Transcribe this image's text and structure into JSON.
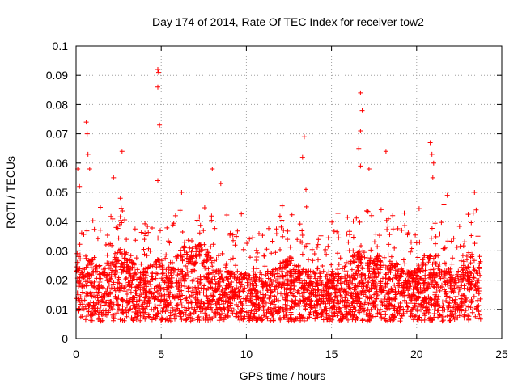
{
  "chart_data": {
    "type": "scatter",
    "title": "Day 174 of 2014, Rate Of TEC Index for receiver tow2",
    "xlabel": "GPS time / hours",
    "ylabel": "ROTI / TECUs",
    "xlim": [
      0,
      25
    ],
    "ylim": [
      0,
      0.1
    ],
    "xticks": [
      "0",
      "5",
      "10",
      "15",
      "20",
      "25"
    ],
    "yticks": [
      "0",
      "0.01",
      "0.02",
      "0.03",
      "0.04",
      "0.05",
      "0.06",
      "0.07",
      "0.08",
      "0.09",
      "0.1"
    ],
    "grid": true,
    "marker": "+",
    "color": "#ff0000",
    "series": [
      {
        "name": "ROTI",
        "note": "dense cloud of points between roughly 0.005 and 0.03 TECU across 0-23.8 h; notable peaks listed below",
        "peaks": [
          {
            "x": 0.1,
            "y": 0.058
          },
          {
            "x": 0.2,
            "y": 0.052
          },
          {
            "x": 0.6,
            "y": 0.074
          },
          {
            "x": 0.65,
            "y": 0.07
          },
          {
            "x": 0.7,
            "y": 0.063
          },
          {
            "x": 0.8,
            "y": 0.058
          },
          {
            "x": 2.2,
            "y": 0.055
          },
          {
            "x": 2.7,
            "y": 0.064
          },
          {
            "x": 2.6,
            "y": 0.048
          },
          {
            "x": 4.8,
            "y": 0.092
          },
          {
            "x": 4.85,
            "y": 0.091
          },
          {
            "x": 4.8,
            "y": 0.086
          },
          {
            "x": 4.9,
            "y": 0.073
          },
          {
            "x": 4.8,
            "y": 0.054
          },
          {
            "x": 6.2,
            "y": 0.05
          },
          {
            "x": 8.0,
            "y": 0.058
          },
          {
            "x": 8.5,
            "y": 0.053
          },
          {
            "x": 13.4,
            "y": 0.069
          },
          {
            "x": 13.3,
            "y": 0.062
          },
          {
            "x": 13.5,
            "y": 0.051
          },
          {
            "x": 16.7,
            "y": 0.084
          },
          {
            "x": 16.8,
            "y": 0.078
          },
          {
            "x": 16.7,
            "y": 0.071
          },
          {
            "x": 16.6,
            "y": 0.065
          },
          {
            "x": 16.7,
            "y": 0.059
          },
          {
            "x": 17.2,
            "y": 0.058
          },
          {
            "x": 18.2,
            "y": 0.064
          },
          {
            "x": 20.8,
            "y": 0.067
          },
          {
            "x": 20.9,
            "y": 0.063
          },
          {
            "x": 21.0,
            "y": 0.06
          },
          {
            "x": 20.95,
            "y": 0.055
          },
          {
            "x": 21.6,
            "y": 0.046
          },
          {
            "x": 21.8,
            "y": 0.049
          },
          {
            "x": 23.4,
            "y": 0.05
          },
          {
            "x": 23.5,
            "y": 0.044
          },
          {
            "x": 23.6,
            "y": 0.035
          }
        ]
      }
    ]
  }
}
